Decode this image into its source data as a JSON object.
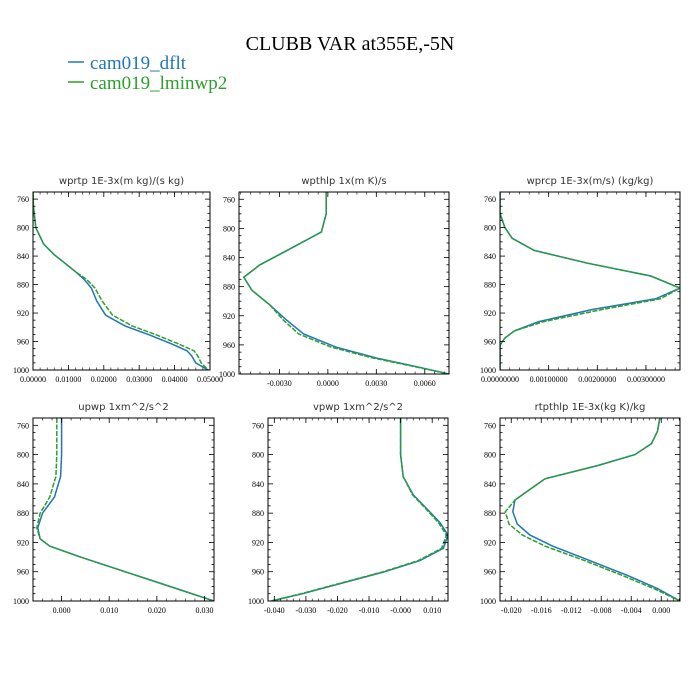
{
  "figure_title": "CLUBB VAR at355E,-5N",
  "colors": {
    "dflt": "#1f77b4",
    "lminwp2": "#2ca02c"
  },
  "legend": [
    {
      "name": "cam019_dflt",
      "color": "#1f77b4"
    },
    {
      "name": "cam019_lminwp2",
      "color": "#2ca02c"
    }
  ],
  "chart_data": [
    {
      "type": "line",
      "title": "wprtp  1E-3x(m kg)/(s kg)",
      "xlim": [
        0.0,
        0.05
      ],
      "ylim": [
        1000,
        750
      ],
      "xticks": [
        0.0,
        0.01,
        0.02,
        0.03,
        0.04,
        0.05
      ],
      "xtick_labels": [
        "0.00000",
        "0.01000",
        "0.02000",
        "0.03000",
        "0.04000",
        "0.05000"
      ],
      "yticks": [
        760,
        800,
        840,
        880,
        920,
        960,
        1000
      ],
      "ytick_labels": [
        "760",
        "800",
        "840",
        "880",
        "920",
        "960",
        "1000"
      ],
      "series": [
        {
          "name": "cam019_dflt",
          "x": [
            0.0,
            0.0001,
            0.0008,
            0.003,
            0.006,
            0.009,
            0.012,
            0.0145,
            0.0165,
            0.018,
            0.0205,
            0.026,
            0.033,
            0.039,
            0.0435,
            0.0448,
            0.046,
            0.0495
          ],
          "y": [
            750,
            770,
            800,
            823,
            838,
            850,
            862,
            873,
            885,
            903,
            923,
            938,
            951,
            963,
            973,
            980,
            990,
            1000
          ]
        },
        {
          "name": "cam019_lminwp2",
          "x": [
            0.0,
            0.0001,
            0.0008,
            0.003,
            0.006,
            0.009,
            0.012,
            0.0152,
            0.0175,
            0.0195,
            0.0225,
            0.028,
            0.035,
            0.041,
            0.0455,
            0.0465,
            0.0475,
            0.0495
          ],
          "y": [
            750,
            770,
            800,
            823,
            838,
            850,
            862,
            873,
            885,
            903,
            923,
            938,
            951,
            963,
            973,
            980,
            990,
            1000
          ]
        }
      ]
    },
    {
      "type": "line",
      "title": "wpthlp  1x(m K)/s",
      "xlim": [
        -0.0055,
        0.0075
      ],
      "ylim": [
        1000,
        750
      ],
      "xticks": [
        -0.003,
        0.0,
        0.003,
        0.006
      ],
      "xtick_labels": [
        "-0.0030",
        "0.0000",
        "0.0030",
        "0.0060"
      ],
      "yticks": [
        760,
        800,
        840,
        880,
        920,
        960,
        1000
      ],
      "ytick_labels": [
        "760",
        "800",
        "840",
        "880",
        "920",
        "960",
        "1000"
      ],
      "series": [
        {
          "name": "cam019_dflt",
          "x": [
            -0.0001,
            -0.0001,
            -0.0004,
            -0.0025,
            -0.0042,
            -0.0052,
            -0.0047,
            -0.0036,
            -0.0026,
            -0.0015,
            0.0005,
            0.003,
            0.0055,
            0.0075
          ],
          "y": [
            750,
            780,
            805,
            830,
            850,
            867,
            885,
            905,
            925,
            945,
            963,
            978,
            990,
            1000
          ]
        },
        {
          "name": "cam019_lminwp2",
          "x": [
            -0.0001,
            -0.0001,
            -0.0004,
            -0.0025,
            -0.0042,
            -0.0052,
            -0.0047,
            -0.0036,
            -0.0028,
            -0.0018,
            0.0002,
            0.0028,
            0.0054,
            0.0075
          ],
          "y": [
            750,
            780,
            805,
            830,
            850,
            867,
            885,
            905,
            925,
            945,
            963,
            978,
            990,
            1000
          ]
        }
      ]
    },
    {
      "type": "line",
      "title": "wprcp  1E-3x(m/s) (kg/kg)",
      "xlim": [
        0.0,
        0.0037
      ],
      "ylim": [
        1000,
        750
      ],
      "xticks": [
        0.0,
        0.001,
        0.002,
        0.003
      ],
      "xtick_labels": [
        "0.00000000",
        "0.00100000",
        "0.00200000",
        "0.00300000"
      ],
      "yticks": [
        760,
        800,
        840,
        880,
        920,
        960,
        1000
      ],
      "ytick_labels": [
        "760",
        "800",
        "840",
        "880",
        "920",
        "960",
        "1000"
      ],
      "series": [
        {
          "name": "cam019_dflt",
          "x": [
            0.0,
            0.0,
            0.0001,
            0.00025,
            0.0007,
            0.0018,
            0.0031,
            0.0037,
            0.0032,
            0.0019,
            0.0008,
            0.0003,
            0.0001,
            0.0,
            0.0
          ],
          "y": [
            750,
            780,
            800,
            815,
            832,
            850,
            868,
            885,
            900,
            915,
            932,
            945,
            955,
            965,
            1000
          ]
        },
        {
          "name": "cam019_lminwp2",
          "x": [
            0.0,
            0.0,
            0.0001,
            0.00025,
            0.0007,
            0.0018,
            0.0031,
            0.0037,
            0.0033,
            0.0021,
            0.0009,
            0.0003,
            0.0001,
            0.0,
            0.0
          ],
          "y": [
            750,
            780,
            800,
            815,
            832,
            850,
            868,
            885,
            900,
            915,
            932,
            945,
            955,
            965,
            1000
          ]
        }
      ]
    },
    {
      "type": "line",
      "title": "upwp  1xm^2/s^2",
      "xlim": [
        -0.006,
        0.032
      ],
      "ylim": [
        1000,
        750
      ],
      "xticks": [
        0.0,
        0.01,
        0.02,
        0.03
      ],
      "xtick_labels": [
        "0.000",
        "0.010",
        "0.020",
        "0.030"
      ],
      "yticks": [
        760,
        800,
        840,
        880,
        920,
        960,
        1000
      ],
      "ytick_labels": [
        "760",
        "800",
        "840",
        "880",
        "920",
        "960",
        "1000"
      ],
      "series": [
        {
          "name": "cam019_dflt",
          "x": [
            0.0,
            0.0,
            -0.0002,
            -0.0015,
            -0.004,
            -0.005,
            -0.0045,
            -0.0025,
            0.004,
            0.011,
            0.018,
            0.025,
            0.032
          ],
          "y": [
            750,
            800,
            830,
            858,
            880,
            900,
            915,
            925,
            940,
            955,
            970,
            985,
            1000
          ]
        },
        {
          "name": "cam019_lminwp2",
          "x": [
            -0.001,
            -0.001,
            -0.0012,
            -0.0025,
            -0.0045,
            -0.0052,
            -0.0045,
            -0.0025,
            0.004,
            0.011,
            0.018,
            0.025,
            0.032
          ],
          "y": [
            750,
            800,
            830,
            858,
            880,
            900,
            915,
            925,
            940,
            955,
            970,
            985,
            1000
          ]
        }
      ]
    },
    {
      "type": "line",
      "title": "vpwp  1xm^2/s^2",
      "xlim": [
        -0.042,
        0.015
      ],
      "ylim": [
        1000,
        750
      ],
      "xticks": [
        -0.04,
        -0.03,
        -0.02,
        -0.01,
        0.0,
        0.01
      ],
      "xtick_labels": [
        "-0.040",
        "-0.030",
        "-0.020",
        "-0.010",
        "-0.000",
        "0.010"
      ],
      "yticks": [
        760,
        800,
        840,
        880,
        920,
        960,
        1000
      ],
      "ytick_labels": [
        "760",
        "800",
        "840",
        "880",
        "920",
        "960",
        "1000"
      ],
      "series": [
        {
          "name": "cam019_dflt",
          "x": [
            0.0,
            0.0,
            0.0008,
            0.004,
            0.0085,
            0.0125,
            0.015,
            0.0135,
            0.006,
            -0.005,
            -0.018,
            -0.031,
            -0.041
          ],
          "y": [
            750,
            800,
            830,
            855,
            875,
            893,
            910,
            928,
            945,
            960,
            975,
            990,
            1000
          ]
        },
        {
          "name": "cam019_lminwp2",
          "x": [
            0.0,
            0.0,
            0.0008,
            0.0038,
            0.0082,
            0.012,
            0.0145,
            0.013,
            0.0055,
            -0.0055,
            -0.0185,
            -0.0315,
            -0.041
          ],
          "y": [
            750,
            800,
            830,
            855,
            875,
            893,
            910,
            928,
            945,
            960,
            975,
            990,
            1000
          ]
        }
      ]
    },
    {
      "type": "line",
      "title": "rtpthlp  1E-3x(kg K)/kg",
      "xlim": [
        -0.0215,
        0.0025
      ],
      "ylim": [
        1000,
        750
      ],
      "xticks": [
        -0.02,
        -0.016,
        -0.012,
        -0.008,
        -0.004,
        0.0
      ],
      "xtick_labels": [
        "-0.020",
        "-0.016",
        "-0.012",
        "-0.008",
        "-0.004",
        "0.000"
      ],
      "yticks": [
        760,
        800,
        840,
        880,
        920,
        960,
        1000
      ],
      "ytick_labels": [
        "760",
        "800",
        "840",
        "880",
        "920",
        "960",
        "1000"
      ],
      "series": [
        {
          "name": "cam019_dflt",
          "x": [
            -0.0002,
            -0.0005,
            -0.0013,
            -0.0035,
            -0.0085,
            -0.0155,
            -0.0195,
            -0.0198,
            -0.0192,
            -0.0175,
            -0.0145,
            -0.0095,
            -0.0045,
            -0.0005,
            0.0025
          ],
          "y": [
            750,
            768,
            785,
            800,
            815,
            833,
            862,
            878,
            895,
            910,
            925,
            945,
            965,
            983,
            1000
          ]
        },
        {
          "name": "cam019_lminwp2",
          "x": [
            -0.0002,
            -0.0005,
            -0.0013,
            -0.0035,
            -0.0085,
            -0.0155,
            -0.0195,
            -0.0208,
            -0.0203,
            -0.0185,
            -0.0155,
            -0.0102,
            -0.0052,
            -0.001,
            0.0025
          ],
          "y": [
            750,
            768,
            785,
            800,
            815,
            833,
            862,
            878,
            895,
            910,
            925,
            945,
            965,
            983,
            1000
          ]
        }
      ]
    }
  ]
}
